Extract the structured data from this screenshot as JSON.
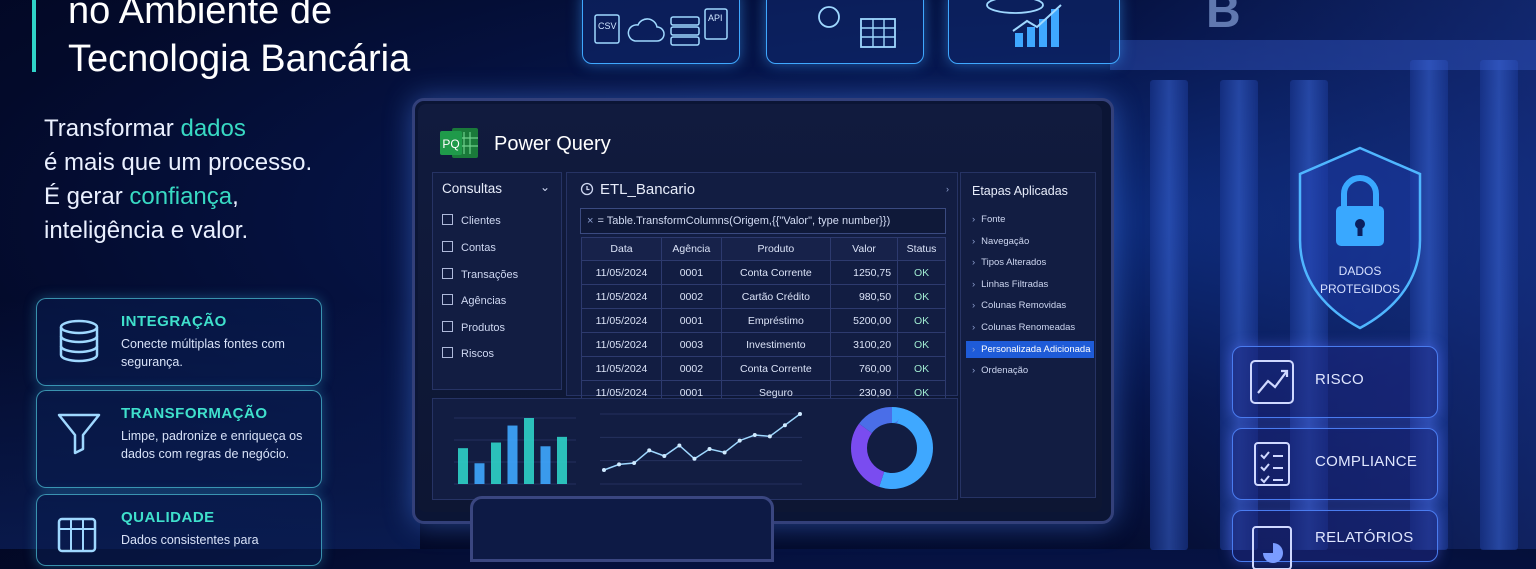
{
  "header": {
    "title_line1": "no Ambiente de",
    "title_line2": "Tecnologia Bancária"
  },
  "tagline": {
    "part1": "Transformar ",
    "part1_highlight": "dados",
    "line2": "é mais que um processo.",
    "line3_prefix": "É gerar ",
    "line3_highlight": "confiança",
    "line3_suffix": ",",
    "line4": "inteligência e valor."
  },
  "feature_cards": [
    {
      "title": "INTEGRAÇÃO",
      "text": "Conecte múltiplas fontes com segurança.",
      "icon": "database-icon"
    },
    {
      "title": "TRANSFORMAÇÃO",
      "text": "Limpe, padronize e enriqueça os dados com regras de negócio.",
      "icon": "funnel-icon"
    },
    {
      "title": "QUALIDADE",
      "text": "Dados consistentes para",
      "icon": "table-check-icon"
    }
  ],
  "top_tiles": {
    "csv_label": "CSV",
    "api_label": "API"
  },
  "power_query": {
    "app_title": "Power Query",
    "logo_text": "PQ",
    "queries_header": "Consultas",
    "queries": [
      "Clientes",
      "Contas",
      "Transações",
      "Agências",
      "Produtos",
      "Riscos"
    ],
    "query_name": "ETL_Bancario",
    "formula": "= Table.TransformColumns(Origem,{{\"Valor\", type number}})",
    "columns": [
      "Data",
      "Agência",
      "Produto",
      "Valor",
      "Status"
    ],
    "rows": [
      [
        "11/05/2024",
        "0001",
        "Conta Corrente",
        "1250,75",
        "OK"
      ],
      [
        "11/05/2024",
        "0002",
        "Cartão Crédito",
        "980,50",
        "OK"
      ],
      [
        "11/05/2024",
        "0001",
        "Empréstimo",
        "5200,00",
        "OK"
      ],
      [
        "11/05/2024",
        "0003",
        "Investimento",
        "3100,20",
        "OK"
      ],
      [
        "11/05/2024",
        "0002",
        "Conta Corrente",
        "760,00",
        "OK"
      ],
      [
        "11/05/2024",
        "0001",
        "Seguro",
        "230,90",
        "OK"
      ]
    ],
    "steps_header": "Etapas Aplicadas",
    "steps": [
      "Fonte",
      "Navegação",
      "Tipos Alterados",
      "Linhas Filtradas",
      "Colunas Removidas",
      "Colunas Renomeadas",
      "Personalizada Adicionada",
      "Ordenação"
    ],
    "selected_step": 6
  },
  "mini_charts": {
    "bar_values": [
      38,
      22,
      44,
      62,
      70,
      40,
      50
    ],
    "bar_colors": [
      "#2fd3c8",
      "#3fa8ff"
    ],
    "line_values": [
      20,
      28,
      30,
      48,
      40,
      55,
      36,
      50,
      45,
      62,
      70,
      68,
      84,
      100
    ],
    "donut_values": [
      55,
      30,
      15
    ],
    "donut_colors": [
      "#3fa8ff",
      "#7a4cf0",
      "#4a6ee8"
    ]
  },
  "shield": {
    "line1": "DADOS",
    "line2": "PROTEGIDOS"
  },
  "right_cards": [
    {
      "label": "RISCO",
      "icon": "chart-trend-icon"
    },
    {
      "label": "COMPLIANCE",
      "icon": "checklist-icon"
    },
    {
      "label": "RELATÓRIOS",
      "icon": "report-icon"
    }
  ],
  "building_sign": "B"
}
